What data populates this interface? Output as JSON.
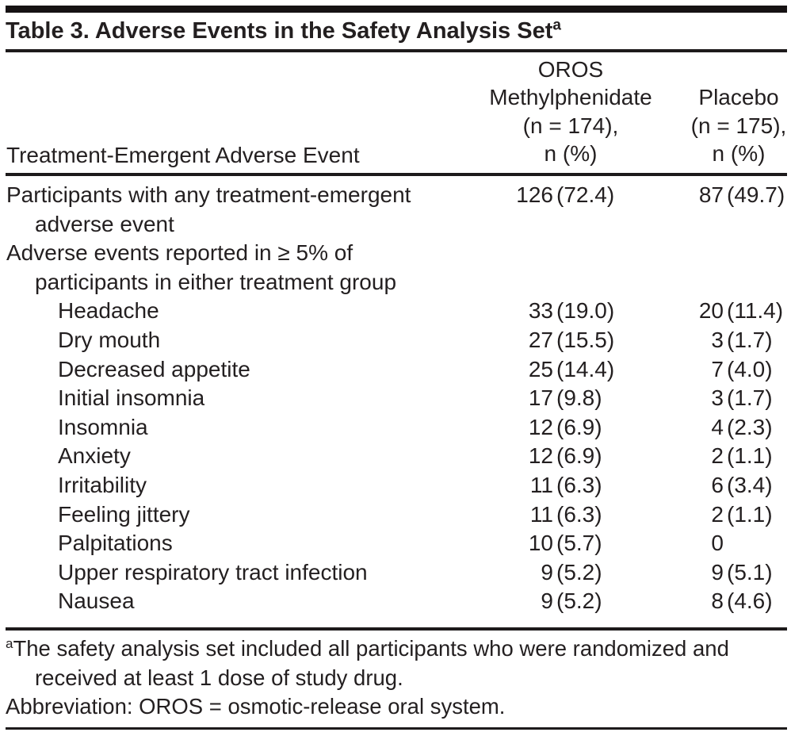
{
  "title": {
    "text": "Table 3. Adverse Events in the Safety Analysis Set",
    "sup": "a"
  },
  "header": {
    "col1": "Treatment-Emergent Adverse Event",
    "col2_lines": {
      "l1": "OROS",
      "l2": "Methylphenidate",
      "l3": "(n = 174),",
      "l4": "n (%)"
    },
    "col3_lines": {
      "l1": "Placebo",
      "l2": "(n = 175),",
      "l3": "n (%)"
    }
  },
  "lines": [
    {
      "label": "Participants with any treatment-emergent",
      "oros_n": "126",
      "oros_pct": "(72.4)",
      "placebo_n": "87",
      "placebo_pct": "(49.7)"
    },
    {
      "label": "adverse event"
    },
    {
      "label": "Adverse events reported in ≥ 5% of"
    },
    {
      "label": "participants in either treatment group"
    },
    {
      "label": "Headache",
      "oros_n": "33",
      "oros_pct": "(19.0)",
      "placebo_n": "20",
      "placebo_pct": "(11.4)"
    },
    {
      "label": "Dry mouth",
      "oros_n": "27",
      "oros_pct": "(15.5)",
      "placebo_n": "3",
      "placebo_pct": "(1.7)"
    },
    {
      "label": "Decreased appetite",
      "oros_n": "25",
      "oros_pct": "(14.4)",
      "placebo_n": "7",
      "placebo_pct": "(4.0)"
    },
    {
      "label": "Initial insomnia",
      "oros_n": "17",
      "oros_pct": "(9.8)",
      "placebo_n": "3",
      "placebo_pct": "(1.7)"
    },
    {
      "label": "Insomnia",
      "oros_n": "12",
      "oros_pct": "(6.9)",
      "placebo_n": "4",
      "placebo_pct": "(2.3)"
    },
    {
      "label": "Anxiety",
      "oros_n": "12",
      "oros_pct": "(6.9)",
      "placebo_n": "2",
      "placebo_pct": "(1.1)"
    },
    {
      "label": "Irritability",
      "oros_n": "11",
      "oros_pct": "(6.3)",
      "placebo_n": "6",
      "placebo_pct": "(3.4)"
    },
    {
      "label": "Feeling jittery",
      "oros_n": "11",
      "oros_pct": "(6.3)",
      "placebo_n": "2",
      "placebo_pct": "(1.1)"
    },
    {
      "label": "Palpitations",
      "oros_n": "10",
      "oros_pct": "(5.7)",
      "placebo_n": "0"
    },
    {
      "label": "Upper respiratory tract infection",
      "oros_n": "9",
      "oros_pct": "(5.2)",
      "placebo_n": "9",
      "placebo_pct": "(5.1)"
    },
    {
      "label": "Nausea",
      "oros_n": "9",
      "oros_pct": "(5.2)",
      "placebo_n": "8",
      "placebo_pct": "(4.6)"
    }
  ],
  "footnotes": {
    "sup": "a",
    "line1": "The safety analysis set included all participants who were randomized and",
    "line2": "received at least 1 dose of study drug.",
    "abbrev": "Abbreviation: OROS = osmotic-release oral system."
  },
  "colors": {
    "text": "#231f20",
    "rule": "#1d1a1b",
    "bar": "#161213"
  }
}
